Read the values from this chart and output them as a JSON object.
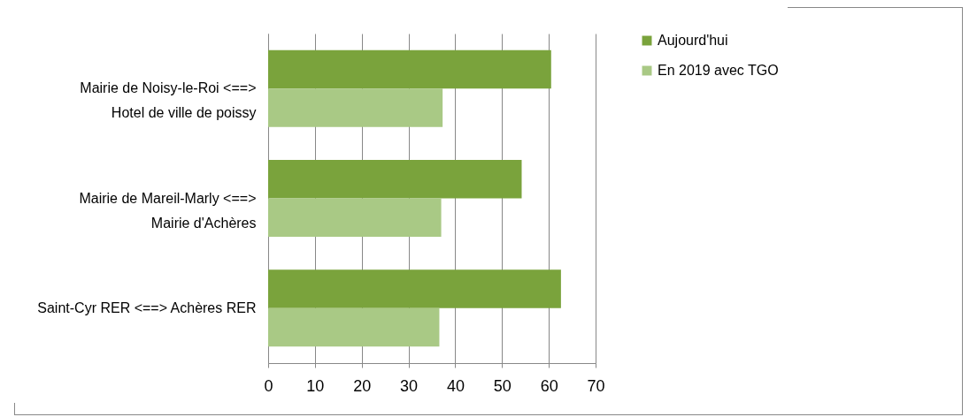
{
  "chart_data": {
    "type": "bar",
    "orientation": "horizontal",
    "categories": [
      "Mairie de Noisy-le-Roi <==>\nHotel de ville de poissy",
      "Mairie de Mareil-Marly <==>\nMairie d'Achères",
      "Saint-Cyr RER <==> Achères RER"
    ],
    "series": [
      {
        "name": "Aujourd'hui",
        "color": "#7aa33c",
        "values": [
          60.5,
          54.2,
          62.6
        ]
      },
      {
        "name": "En 2019 avec TGO",
        "color": "#a9c985",
        "values": [
          37.3,
          37.0,
          36.6
        ]
      }
    ],
    "xlim": [
      0,
      70
    ],
    "xticks": [
      0,
      10,
      20,
      30,
      40,
      50,
      60,
      70
    ],
    "grid": "x",
    "legend": "right"
  }
}
